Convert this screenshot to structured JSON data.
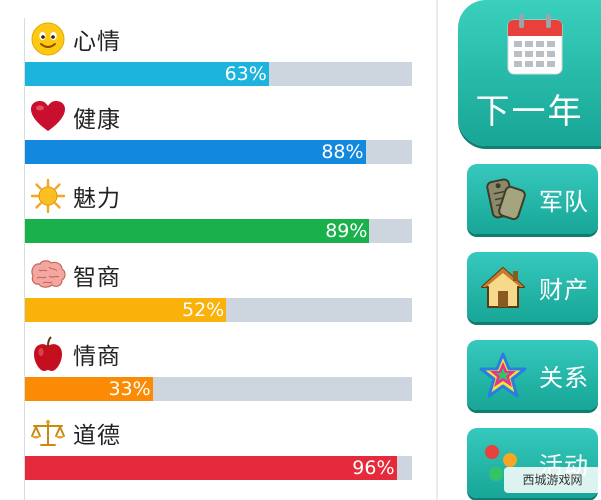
{
  "stats": [
    {
      "name": "心情",
      "percent_text": "63%",
      "value": 63,
      "color": "#1cb3dd",
      "icon": "smiley-face-icon"
    },
    {
      "name": "健康",
      "percent_text": "88%",
      "value": 88,
      "color": "#1288df",
      "icon": "heart-icon"
    },
    {
      "name": "魅力",
      "percent_text": "89%",
      "value": 89,
      "color": "#18b14b",
      "icon": "sun-icon"
    },
    {
      "name": "智商",
      "percent_text": "52%",
      "value": 52,
      "color": "#fab10a",
      "icon": "brain-icon"
    },
    {
      "name": "情商",
      "percent_text": "33%",
      "value": 33,
      "color": "#fb8a05",
      "icon": "apple-icon"
    },
    {
      "name": "道德",
      "percent_text": "96%",
      "value": 96,
      "color": "#e52a3b",
      "icon": "scales-icon"
    }
  ],
  "next_year": {
    "label": "下一年",
    "icon": "calendar-icon"
  },
  "menu": [
    {
      "label": "军队",
      "icon": "army-tags-icon"
    },
    {
      "label": "财产",
      "icon": "house-icon"
    },
    {
      "label": "关系",
      "icon": "star-icon"
    },
    {
      "label": "活动",
      "icon": "activity-icon"
    }
  ],
  "watermark": "西城游戏网",
  "colors": {
    "track": "#cdd6df",
    "button": "#1fb3a3"
  }
}
